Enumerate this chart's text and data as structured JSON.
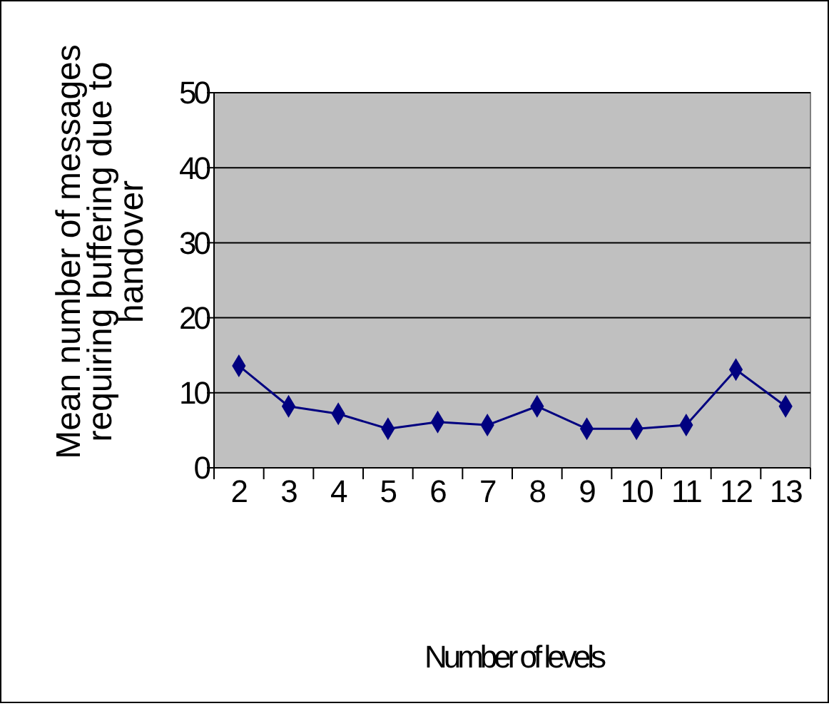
{
  "chart_data": {
    "type": "line",
    "xlabel": "Number of levels",
    "ylabel": "Mean number of messages requiring buffering due to handover",
    "categories": [
      "2",
      "3",
      "4",
      "5",
      "6",
      "7",
      "8",
      "9",
      "10",
      "11",
      "12",
      "13"
    ],
    "series": [
      {
        "color": "#000080",
        "values": [
          13.6,
          8.2,
          7.2,
          5.2,
          6.1,
          5.7,
          8.2,
          5.2,
          5.2,
          5.7,
          13.1,
          8.2
        ]
      }
    ],
    "ylim": [
      0,
      50
    ],
    "yticks": [
      0,
      10,
      20,
      30,
      40,
      50
    ],
    "grid": "y",
    "marker": "diamond"
  }
}
